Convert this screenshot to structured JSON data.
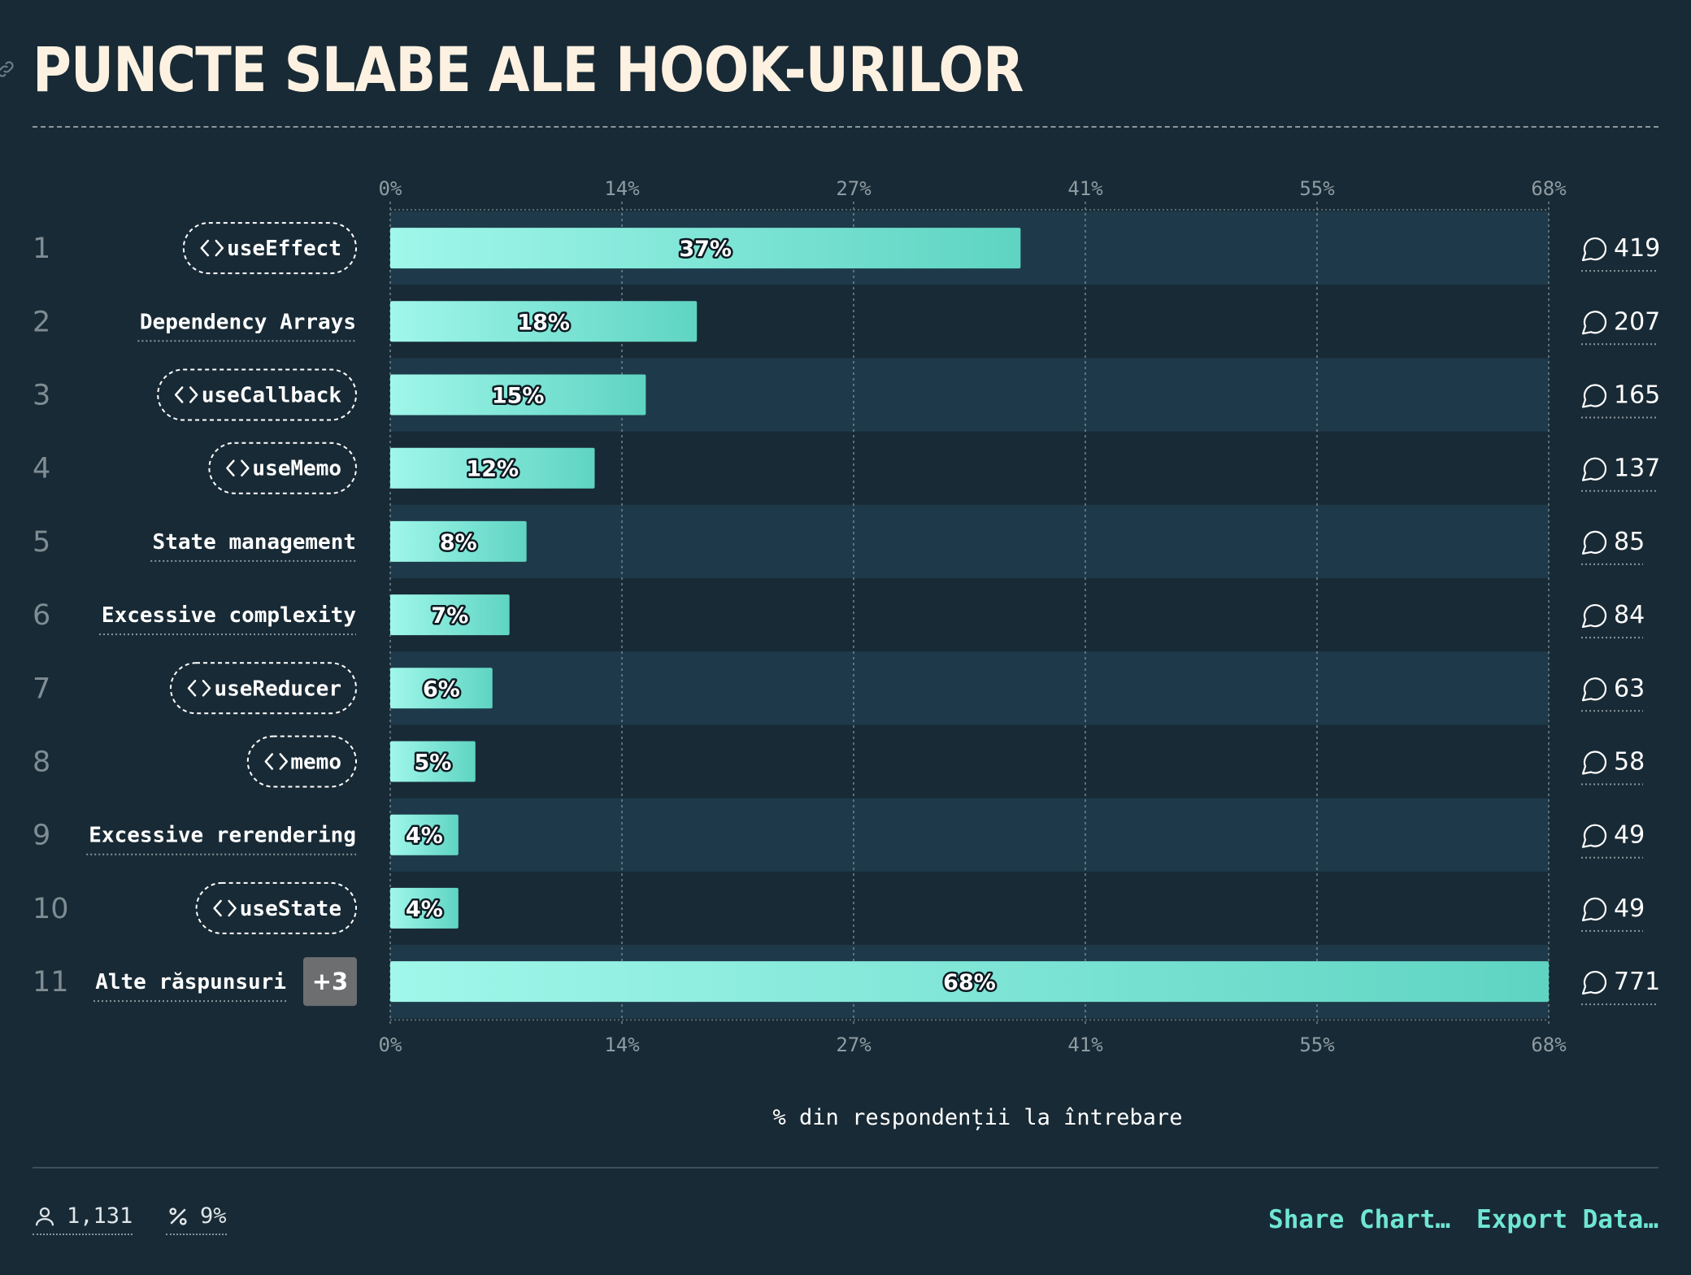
{
  "title": "PUNCTE SLABE ALE HOOK-URILOR",
  "colors": {
    "background": "#182a35",
    "band": "#1e3a4a",
    "bar_start": "#a0f7ea",
    "bar_end": "#5fd4c2",
    "accent": "#6fe6d3",
    "badge": "#6d6e70"
  },
  "chart_data": {
    "type": "bar",
    "orientation": "horizontal",
    "categories": [
      "useEffect",
      "Dependency Arrays",
      "useCallback",
      "useMemo",
      "State management",
      "Excessive complexity",
      "useReducer",
      "memo",
      "Excessive rerendering",
      "useState",
      "Alte răspunsuri"
    ],
    "ranks": [
      "1",
      "2",
      "3",
      "4",
      "5",
      "6",
      "7",
      "8",
      "9",
      "10",
      "11"
    ],
    "code_hooks": [
      true,
      false,
      true,
      true,
      false,
      false,
      true,
      true,
      false,
      true,
      false
    ],
    "values": [
      37,
      18,
      15,
      12,
      8,
      7,
      6,
      5,
      4,
      4,
      68
    ],
    "value_labels": [
      "37%",
      "18%",
      "15%",
      "12%",
      "8%",
      "7%",
      "6%",
      "5%",
      "4%",
      "4%",
      "68%"
    ],
    "comment_counts": [
      "419",
      "207",
      "165",
      "137",
      "85",
      "84",
      "63",
      "58",
      "49",
      "49",
      "771"
    ],
    "other_badge": "+3",
    "x_ticks": [
      "0%",
      "14%",
      "27%",
      "41%",
      "55%",
      "68%"
    ],
    "xlim": [
      0,
      68
    ],
    "xlabel": "% din respondenții la întrebare",
    "grid": true
  },
  "footer": {
    "respondents": "1,131",
    "percent": "9%",
    "share_label": "Share Chart…",
    "export_label": "Export Data…"
  },
  "icons": {
    "title_link": "link-icon",
    "comment": "comment-icon",
    "code": "code-icon",
    "respondents": "user-icon",
    "percent": "percent-icon"
  }
}
